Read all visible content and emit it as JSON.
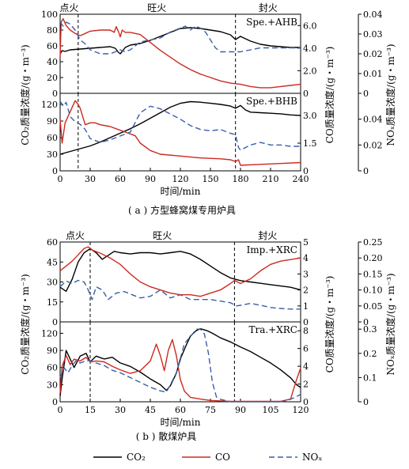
{
  "chart_data": [
    {
      "id": "a1",
      "type": "line",
      "annotation": "Spe.+AHB",
      "phases": [
        "点火",
        "旺火",
        "封火"
      ],
      "phase_lines_x": [
        18,
        175
      ],
      "xlim": [
        0,
        240
      ],
      "x_ticks": [],
      "y_left": {
        "ticks": [
          "0",
          "20",
          "40",
          "60",
          "80",
          "100"
        ],
        "lim": [
          0,
          100
        ]
      },
      "y_right": {
        "ticks": [
          "0",
          "2.0",
          "4.0",
          "6.0"
        ],
        "lim": [
          0,
          7
        ]
      },
      "y_right2": {
        "ticks": [
          "0",
          "0.01",
          "0.02",
          "0.03",
          "0.04"
        ],
        "lim": [
          0,
          0.04
        ]
      },
      "series": [
        {
          "name": "CO2",
          "color": "#000000",
          "dash": "",
          "axis": "left",
          "x": [
            0,
            2,
            5,
            10,
            20,
            30,
            40,
            50,
            55,
            58,
            60,
            62,
            65,
            70,
            80,
            90,
            100,
            110,
            120,
            130,
            140,
            150,
            160,
            170,
            175,
            180,
            190,
            200,
            210,
            220,
            230,
            240
          ],
          "y": [
            50,
            54,
            53,
            55,
            56,
            57,
            58,
            59,
            57,
            52,
            50,
            53,
            58,
            61,
            63,
            67,
            72,
            77,
            82,
            83,
            82,
            80,
            78,
            74,
            68,
            72,
            66,
            62,
            60,
            59,
            58,
            58
          ]
        },
        {
          "name": "CO",
          "color": "#cc2a1f",
          "dash": "",
          "axis": "right",
          "x": [
            0,
            1,
            3,
            6,
            10,
            15,
            20,
            25,
            30,
            40,
            50,
            54,
            56,
            58,
            60,
            62,
            65,
            70,
            80,
            90,
            100,
            110,
            120,
            130,
            140,
            150,
            160,
            170,
            180,
            190,
            200,
            210,
            220,
            230,
            240
          ],
          "y": [
            3.2,
            6.3,
            6.6,
            6.0,
            5.6,
            5.3,
            5.1,
            5.3,
            5.5,
            5.6,
            5.6,
            5.4,
            5.9,
            5.5,
            5.0,
            5.6,
            5.4,
            5.4,
            5.2,
            4.5,
            3.8,
            3.2,
            2.6,
            2.1,
            1.7,
            1.4,
            1.1,
            0.9,
            0.8,
            0.6,
            0.5,
            0.5,
            0.6,
            0.7,
            0.8
          ]
        },
        {
          "name": "NOx",
          "color": "#3a5fa8",
          "dash": "7,4",
          "axis": "right2",
          "x": [
            0,
            3,
            6,
            10,
            15,
            20,
            25,
            30,
            35,
            40,
            50,
            55,
            60,
            65,
            70,
            75,
            80,
            90,
            100,
            110,
            120,
            125,
            130,
            135,
            140,
            145,
            150,
            155,
            160,
            170,
            175,
            180,
            190,
            200,
            220,
            240
          ],
          "y": [
            0.036,
            0.034,
            0.036,
            0.035,
            0.032,
            0.027,
            0.025,
            0.022,
            0.021,
            0.02,
            0.02,
            0.021,
            0.022,
            0.021,
            0.022,
            0.024,
            0.026,
            0.027,
            0.028,
            0.031,
            0.033,
            0.034,
            0.032,
            0.034,
            0.033,
            0.031,
            0.027,
            0.023,
            0.021,
            0.021,
            0.021,
            0.021,
            0.022,
            0.023,
            0.023,
            0.023
          ]
        }
      ]
    },
    {
      "id": "a2",
      "type": "line",
      "annotation": "Spe.+BHB",
      "phase_lines_x": [
        18,
        175
      ],
      "xlim": [
        0,
        240
      ],
      "x_ticks": [
        "0",
        "30",
        "60",
        "90",
        "120",
        "150",
        "180",
        "210",
        "240"
      ],
      "y_left": {
        "ticks": [
          "0",
          "30",
          "60",
          "90",
          "120"
        ],
        "lim": [
          0,
          140
        ]
      },
      "y_right": {
        "ticks": [
          "0",
          "1.5",
          "3.0"
        ],
        "lim": [
          0,
          4.2
        ]
      },
      "y_right2": {
        "ticks": [
          "0",
          "0.02",
          "0.04"
        ],
        "lim": [
          0,
          0.06
        ]
      },
      "series": [
        {
          "name": "CO2",
          "color": "#000000",
          "dash": "",
          "axis": "left",
          "x": [
            0,
            10,
            20,
            30,
            40,
            50,
            60,
            70,
            80,
            90,
            100,
            110,
            120,
            130,
            140,
            150,
            160,
            170,
            175,
            180,
            185,
            190,
            200,
            210,
            220,
            230,
            240
          ],
          "y": [
            30,
            35,
            40,
            45,
            52,
            60,
            68,
            76,
            85,
            95,
            105,
            115,
            122,
            125,
            124,
            122,
            120,
            117,
            113,
            118,
            110,
            106,
            105,
            104,
            103,
            101,
            100
          ]
        },
        {
          "name": "CO",
          "color": "#cc2a1f",
          "dash": "",
          "axis": "right",
          "x": [
            0,
            2,
            5,
            10,
            15,
            18,
            20,
            25,
            30,
            35,
            40,
            50,
            60,
            70,
            75,
            80,
            90,
            100,
            120,
            140,
            160,
            170,
            175,
            178,
            180,
            200,
            220,
            240
          ],
          "y": [
            2.8,
            1.5,
            2.6,
            3.2,
            3.8,
            3.6,
            3.4,
            2.5,
            2.6,
            2.6,
            2.5,
            2.4,
            2.2,
            2.0,
            1.9,
            1.5,
            1.1,
            0.9,
            0.8,
            0.7,
            0.65,
            0.6,
            0.5,
            0.6,
            0.3,
            0.35,
            0.4,
            0.45
          ]
        },
        {
          "name": "NOx",
          "color": "#3a5fa8",
          "dash": "7,4",
          "axis": "right2",
          "x": [
            0,
            3,
            6,
            10,
            15,
            20,
            25,
            30,
            40,
            50,
            60,
            70,
            80,
            90,
            100,
            110,
            120,
            130,
            140,
            150,
            160,
            170,
            175,
            178,
            180,
            190,
            200,
            210,
            220,
            230,
            240
          ],
          "y": [
            0.054,
            0.05,
            0.053,
            0.042,
            0.038,
            0.036,
            0.032,
            0.025,
            0.022,
            0.024,
            0.027,
            0.03,
            0.045,
            0.05,
            0.048,
            0.044,
            0.04,
            0.035,
            0.032,
            0.031,
            0.032,
            0.029,
            0.028,
            0.018,
            0.016,
            0.02,
            0.022,
            0.02,
            0.02,
            0.019,
            0.019
          ]
        }
      ],
      "xlabel": "时间/min"
    },
    {
      "id": "b1",
      "type": "line",
      "annotation": "Imp.+XRC",
      "phases": [
        "点火",
        "旺火",
        "封火"
      ],
      "phase_lines_x": [
        15,
        87
      ],
      "xlim": [
        0,
        120
      ],
      "x_ticks": [],
      "y_left": {
        "ticks": [
          "0",
          "15",
          "30",
          "45",
          "60"
        ],
        "lim": [
          0,
          60
        ]
      },
      "y_right": {
        "ticks": [
          "0",
          "1",
          "2",
          "3",
          "4",
          "5"
        ],
        "lim": [
          0,
          5
        ]
      },
      "y_right2": {
        "ticks": [
          "0",
          "0.05",
          "0.10",
          "0.15",
          "0.20",
          "0.25"
        ],
        "lim": [
          0,
          0.25
        ]
      },
      "series": [
        {
          "name": "CO2",
          "color": "#000000",
          "dash": "",
          "axis": "left",
          "x": [
            0,
            3,
            6,
            9,
            12,
            15,
            18,
            21,
            24,
            27,
            30,
            35,
            40,
            45,
            50,
            55,
            60,
            65,
            70,
            75,
            80,
            85,
            90,
            95,
            100,
            105,
            110,
            115,
            120
          ],
          "y": [
            26,
            23,
            32,
            45,
            52,
            55,
            52,
            47,
            50,
            53,
            52,
            51,
            52,
            52,
            51,
            52,
            53,
            51,
            47,
            42,
            37,
            33,
            31,
            30,
            29,
            28,
            27,
            26,
            24
          ]
        },
        {
          "name": "CO",
          "color": "#cc2a1f",
          "dash": "",
          "axis": "right",
          "x": [
            0,
            3,
            6,
            9,
            12,
            14,
            16,
            20,
            25,
            30,
            35,
            40,
            45,
            50,
            55,
            60,
            65,
            70,
            75,
            80,
            85,
            87,
            90,
            95,
            100,
            105,
            110,
            115,
            120
          ],
          "y": [
            3.2,
            3.5,
            3.8,
            4.2,
            4.6,
            4.7,
            4.5,
            4.3,
            4.0,
            3.6,
            3.0,
            2.5,
            2.2,
            2.0,
            1.8,
            1.7,
            1.7,
            1.6,
            1.8,
            2.0,
            2.4,
            2.6,
            2.4,
            2.7,
            3.2,
            3.6,
            3.8,
            3.9,
            4.0
          ]
        },
        {
          "name": "NOx",
          "color": "#3a5fa8",
          "dash": "7,4",
          "axis": "right2",
          "x": [
            0,
            3,
            6,
            9,
            12,
            14,
            16,
            18,
            21,
            24,
            28,
            32,
            36,
            40,
            45,
            50,
            55,
            60,
            65,
            70,
            75,
            80,
            85,
            88,
            90,
            95,
            100,
            105,
            110,
            115,
            120
          ],
          "y": [
            0.11,
            0.128,
            0.12,
            0.13,
            0.125,
            0.1,
            0.07,
            0.11,
            0.1,
            0.07,
            0.09,
            0.095,
            0.085,
            0.075,
            0.08,
            0.1,
            0.075,
            0.085,
            0.07,
            0.07,
            0.07,
            0.065,
            0.06,
            0.05,
            0.052,
            0.058,
            0.052,
            0.045,
            0.042,
            0.04,
            0.04
          ]
        }
      ]
    },
    {
      "id": "b2",
      "type": "line",
      "annotation": "Tra.+XRC",
      "phase_lines_x": [
        15,
        87
      ],
      "xlim": [
        0,
        120
      ],
      "x_ticks": [
        "0",
        "15",
        "30",
        "45",
        "60",
        "75",
        "90",
        "105",
        "120"
      ],
      "y_left": {
        "ticks": [
          "0",
          "30",
          "60",
          "90",
          "120"
        ],
        "lim": [
          0,
          140
        ]
      },
      "y_right": {
        "ticks": [
          "0",
          "2",
          "4",
          "6",
          "8"
        ],
        "lim": [
          0,
          9
        ]
      },
      "y_right2": {
        "ticks": [
          "0",
          "0.1",
          "0.2",
          "0.3"
        ],
        "lim": [
          0,
          0.33
        ]
      },
      "series": [
        {
          "name": "CO2",
          "color": "#000000",
          "dash": "",
          "axis": "left",
          "x": [
            0,
            1,
            3,
            5,
            7,
            10,
            13,
            15,
            18,
            22,
            26,
            30,
            35,
            40,
            45,
            50,
            53,
            55,
            58,
            60,
            63,
            65,
            68,
            70,
            73,
            76,
            80,
            85,
            90,
            95,
            100,
            105,
            110,
            115,
            118,
            120
          ],
          "y": [
            10,
            40,
            90,
            75,
            60,
            80,
            85,
            70,
            80,
            75,
            78,
            68,
            62,
            52,
            40,
            30,
            20,
            28,
            50,
            75,
            100,
            115,
            125,
            128,
            125,
            120,
            112,
            105,
            96,
            88,
            78,
            68,
            56,
            42,
            30,
            25
          ]
        },
        {
          "name": "CO",
          "color": "#cc2a1f",
          "dash": "",
          "axis": "right",
          "x": [
            0,
            1,
            3,
            5,
            7,
            10,
            13,
            15,
            18,
            22,
            26,
            30,
            35,
            40,
            45,
            48,
            50,
            52,
            54,
            56,
            58,
            60,
            62,
            65,
            70,
            75,
            80,
            85,
            90,
            95,
            100,
            105,
            110,
            115,
            118,
            120
          ],
          "y": [
            1.0,
            4.0,
            5.2,
            4.2,
            4.8,
            4.6,
            5.0,
            4.5,
            4.6,
            4.5,
            4.0,
            3.6,
            3.2,
            3.5,
            4.6,
            6.5,
            5.2,
            3.5,
            5.8,
            7.0,
            5.2,
            2.5,
            1.2,
            0.5,
            0.3,
            0.15,
            0.1,
            0.05,
            0.05,
            0.05,
            0.05,
            0.05,
            0.05,
            0.3,
            2.5,
            3.8
          ]
        },
        {
          "name": "NOx",
          "color": "#3a5fa8",
          "dash": "7,4",
          "axis": "right2",
          "x": [
            0,
            2,
            4,
            6,
            8,
            10,
            13,
            15,
            18,
            22,
            26,
            30,
            35,
            40,
            45,
            50,
            53,
            55,
            58,
            60,
            62,
            65,
            68,
            70,
            72,
            74,
            76,
            78,
            80,
            85,
            90,
            95,
            100,
            105,
            110,
            115,
            120
          ],
          "y": [
            0.1,
            0.14,
            0.12,
            0.15,
            0.17,
            0.16,
            0.17,
            0.17,
            0.16,
            0.15,
            0.13,
            0.12,
            0.1,
            0.08,
            0.06,
            0.045,
            0.04,
            0.07,
            0.12,
            0.18,
            0.24,
            0.27,
            0.3,
            0.3,
            0.28,
            0.2,
            0.08,
            0.02,
            0.01,
            0.0,
            0.0,
            0.0,
            0.0,
            0.0,
            0.0,
            0.01,
            0.03
          ]
        }
      ],
      "xlabel": "时间/min"
    }
  ],
  "axis_labels": {
    "top": {
      "left": "CO₂质量浓度/(g・m⁻³)",
      "right": "CO质量浓度/(g・m⁻³)",
      "right2": "NOₓ质量浓度/(g・m⁻³)"
    },
    "bottom": {
      "left": "CO₂质量浓度/(g・m⁻³)",
      "right": "CO质量浓度/(g・m⁻³)",
      "right2": "NOₓ质量浓度/(g・m⁻³)"
    }
  },
  "captions": {
    "a": "( a ) 方型蜂窝煤专用炉具",
    "b": "( b ) 散煤炉具"
  },
  "legend": [
    {
      "label": "CO₂",
      "color": "#000000",
      "dash": ""
    },
    {
      "label": "CO",
      "color": "#cc2a1f",
      "dash": ""
    },
    {
      "label": "NOₓ",
      "color": "#3a5fa8",
      "dash": "7,4"
    }
  ]
}
